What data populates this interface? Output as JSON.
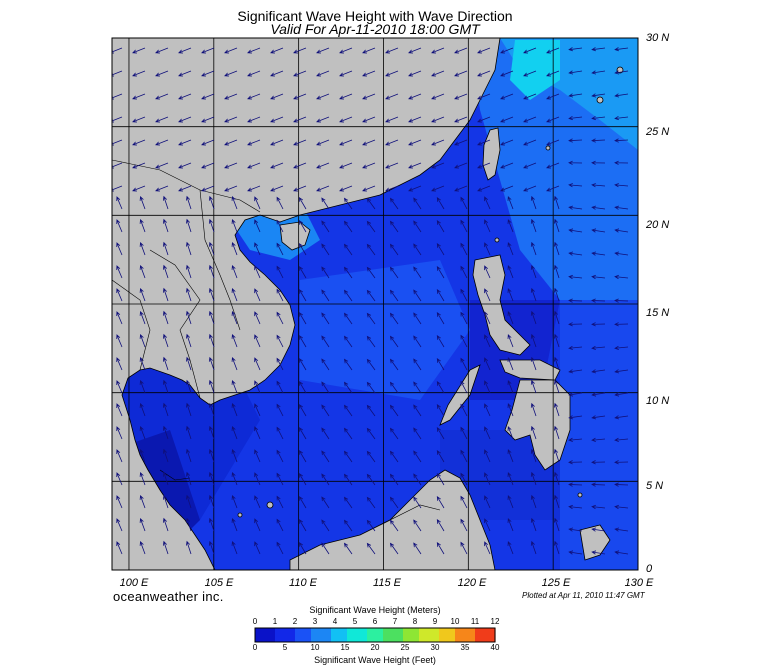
{
  "title": "Significant Wave Height with Wave Direction",
  "subtitle": "Valid For Apr-11-2010 18:00 GMT",
  "credit": "oceanweather inc.",
  "plotted": "Plotted at Apr 11, 2010 11:47 GMT",
  "lat_labels": [
    "30 N",
    "25 N",
    "20 N",
    "15 N",
    "10 N",
    "5 N",
    "0"
  ],
  "lon_labels": [
    "100 E",
    "105 E",
    "110 E",
    "115 E",
    "120 E",
    "125 E",
    "130 E"
  ],
  "colorbar": {
    "title_meters": "Significant Wave Height (Meters)",
    "title_feet": "Significant Wave Height (Feet)",
    "meter_ticks": [
      "0",
      "1",
      "2",
      "3",
      "4",
      "5",
      "6",
      "7",
      "8",
      "9",
      "10",
      "11",
      "12"
    ],
    "feet_ticks": [
      "0",
      "5",
      "10",
      "15",
      "20",
      "25",
      "30",
      "35",
      "40"
    ],
    "colors": [
      "#0a12c8",
      "#1228e8",
      "#1a52f6",
      "#1c86f4",
      "#12c0f4",
      "#10e8d8",
      "#2cf0a0",
      "#4ce060",
      "#8ee634",
      "#cfe82a",
      "#f0c81c",
      "#f6861a",
      "#f03c1a"
    ]
  },
  "map": {
    "lat_range": [
      0,
      30
    ],
    "lon_range": [
      99,
      130
    ],
    "land_color": "#c0c0c0",
    "grid": true
  }
}
